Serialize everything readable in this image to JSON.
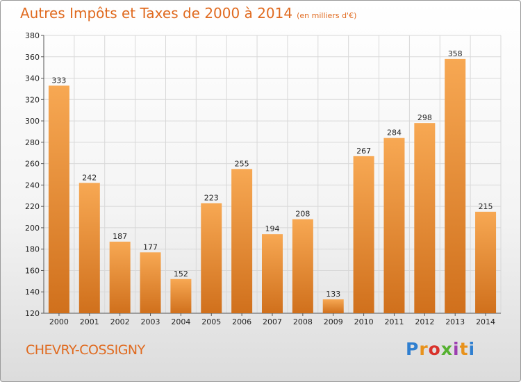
{
  "header": {
    "title": "Autres Impôts et Taxes de 2000 à 2014",
    "subtitle": "(en milliers d'€)"
  },
  "footer": {
    "commune": "CHEVRY-COSSIGNY",
    "brand": "Proxiti",
    "brand_colors": [
      "#2f7fd0",
      "#e8921c",
      "#d9322b",
      "#55b130",
      "#9c3fb0",
      "#e8921c",
      "#2f7fd0"
    ]
  },
  "chart_data": {
    "type": "bar",
    "title": "Autres Impôts et Taxes de 2000 à 2014",
    "subtitle": "(en milliers d'€)",
    "xlabel": "",
    "ylabel": "",
    "categories": [
      "2000",
      "2001",
      "2002",
      "2003",
      "2004",
      "2005",
      "2006",
      "2007",
      "2008",
      "2009",
      "2010",
      "2011",
      "2012",
      "2013",
      "2014"
    ],
    "values": [
      333,
      242,
      187,
      177,
      152,
      223,
      255,
      194,
      208,
      133,
      267,
      284,
      298,
      358,
      215
    ],
    "ylim": [
      120,
      380
    ],
    "yticks": [
      120,
      140,
      160,
      180,
      200,
      220,
      240,
      260,
      280,
      300,
      320,
      340,
      360,
      380
    ],
    "grid": true,
    "bar_color_top": "#f7a853",
    "bar_color_bottom": "#d0701c",
    "grid_color": "#d8d8d8"
  }
}
